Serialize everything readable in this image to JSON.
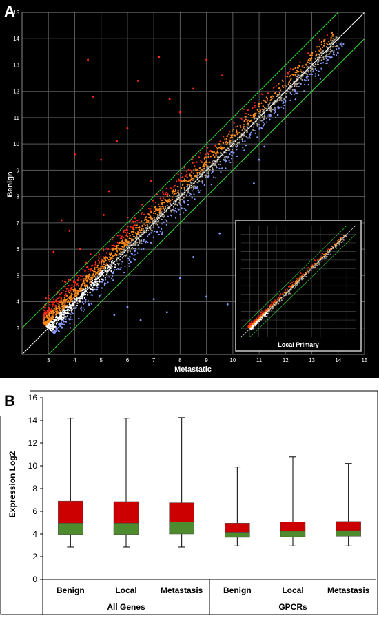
{
  "panel_a": {
    "label": "A",
    "chart_data": {
      "type": "scatter",
      "xlabel": "Metastatic",
      "ylabel": "Benign",
      "xlim": [
        2,
        15
      ],
      "ylim": [
        2,
        15
      ],
      "x_ticks": [
        3,
        4,
        5,
        6,
        7,
        8,
        9,
        10,
        11,
        12,
        13,
        14,
        15
      ],
      "y_ticks": [
        3,
        4,
        5,
        6,
        7,
        8,
        9,
        10,
        11,
        12,
        13,
        14,
        15
      ],
      "grid": true,
      "reference_lines": [
        {
          "kind": "identity",
          "slope": 1,
          "intercept": 0,
          "color": "#ffffff"
        },
        {
          "kind": "fold-change-upper",
          "slope": 1,
          "intercept": 1,
          "color": "#33dd33"
        },
        {
          "kind": "fold-change-lower",
          "slope": 1,
          "intercept": -1,
          "color": "#33dd33"
        }
      ],
      "colors": {
        "up": "#ff2a1a",
        "mid_high": "#ff8c1a",
        "mid": "#a8a090",
        "down": "#8a9cff",
        "white": "#ffffff",
        "grid": "#5a5a5a"
      },
      "series": [
        {
          "values_desc": "red genes, Benign > Metastatic",
          "points": [
            [
              3.5,
              7.1
            ],
            [
              4.0,
              9.6
            ],
            [
              4.5,
              13.2
            ],
            [
              4.7,
              11.8
            ],
            [
              5.0,
              9.4
            ],
            [
              5.3,
              8.2
            ],
            [
              5.6,
              10.1
            ],
            [
              6.0,
              10.6
            ],
            [
              6.4,
              12.4
            ],
            [
              6.9,
              8.6
            ],
            [
              7.2,
              13.3
            ],
            [
              7.6,
              11.7
            ],
            [
              8.0,
              11.2
            ],
            [
              8.5,
              12.1
            ],
            [
              9.0,
              13.2
            ],
            [
              9.6,
              12.6
            ],
            [
              3.2,
              5.9
            ],
            [
              3.8,
              6.7
            ],
            [
              4.2,
              6.0
            ],
            [
              5.1,
              7.3
            ]
          ]
        },
        {
          "values_desc": "blue genes, Metastatic > Benign",
          "points": [
            [
              5.5,
              3.5
            ],
            [
              6.0,
              3.8
            ],
            [
              7.0,
              4.1
            ],
            [
              7.5,
              3.6
            ],
            [
              8.0,
              4.9
            ],
            [
              8.5,
              5.7
            ],
            [
              9.0,
              4.2
            ],
            [
              9.5,
              6.6
            ],
            [
              10.2,
              7.1
            ],
            [
              10.8,
              8.5
            ],
            [
              11.0,
              9.4
            ],
            [
              11.2,
              9.9
            ],
            [
              6.5,
              3.3
            ],
            [
              9.8,
              3.9
            ],
            [
              10.5,
              5.0
            ]
          ]
        }
      ],
      "inset": {
        "title": "Local Primary",
        "xlim": [
          2,
          15
        ],
        "ylim": [
          2,
          15
        ],
        "grid": true
      }
    }
  },
  "panel_b": {
    "label": "B",
    "chart_data": {
      "type": "box",
      "ylabel": "Expression Log2",
      "ylim": [
        0,
        16
      ],
      "y_ticks": [
        0,
        2,
        4,
        6,
        8,
        10,
        12,
        14,
        16
      ],
      "categories": [
        "Benign",
        "Local",
        "Metastasis",
        "Benign",
        "Local",
        "Metastasis"
      ],
      "groups": [
        {
          "name": "All Genes",
          "category_indices": [
            0,
            1,
            2
          ]
        },
        {
          "name": "GPCRs",
          "category_indices": [
            3,
            4,
            5
          ]
        }
      ],
      "boxes": [
        {
          "min": 2.85,
          "q1": 3.95,
          "median": 4.95,
          "q3": 6.9,
          "max": 14.2
        },
        {
          "min": 2.85,
          "q1": 3.95,
          "median": 4.95,
          "q3": 6.85,
          "max": 14.2
        },
        {
          "min": 2.85,
          "q1": 4.0,
          "median": 5.05,
          "q3": 6.75,
          "max": 14.25
        },
        {
          "min": 2.95,
          "q1": 3.7,
          "median": 4.15,
          "q3": 4.95,
          "max": 9.9
        },
        {
          "min": 2.95,
          "q1": 3.75,
          "median": 4.25,
          "q3": 5.05,
          "max": 10.8
        },
        {
          "min": 2.95,
          "q1": 3.8,
          "median": 4.3,
          "q3": 5.1,
          "max": 10.2
        }
      ],
      "colors": {
        "upper_box": "#cc0000",
        "lower_box": "#4e8a2e",
        "whisker": "#000000"
      }
    }
  }
}
